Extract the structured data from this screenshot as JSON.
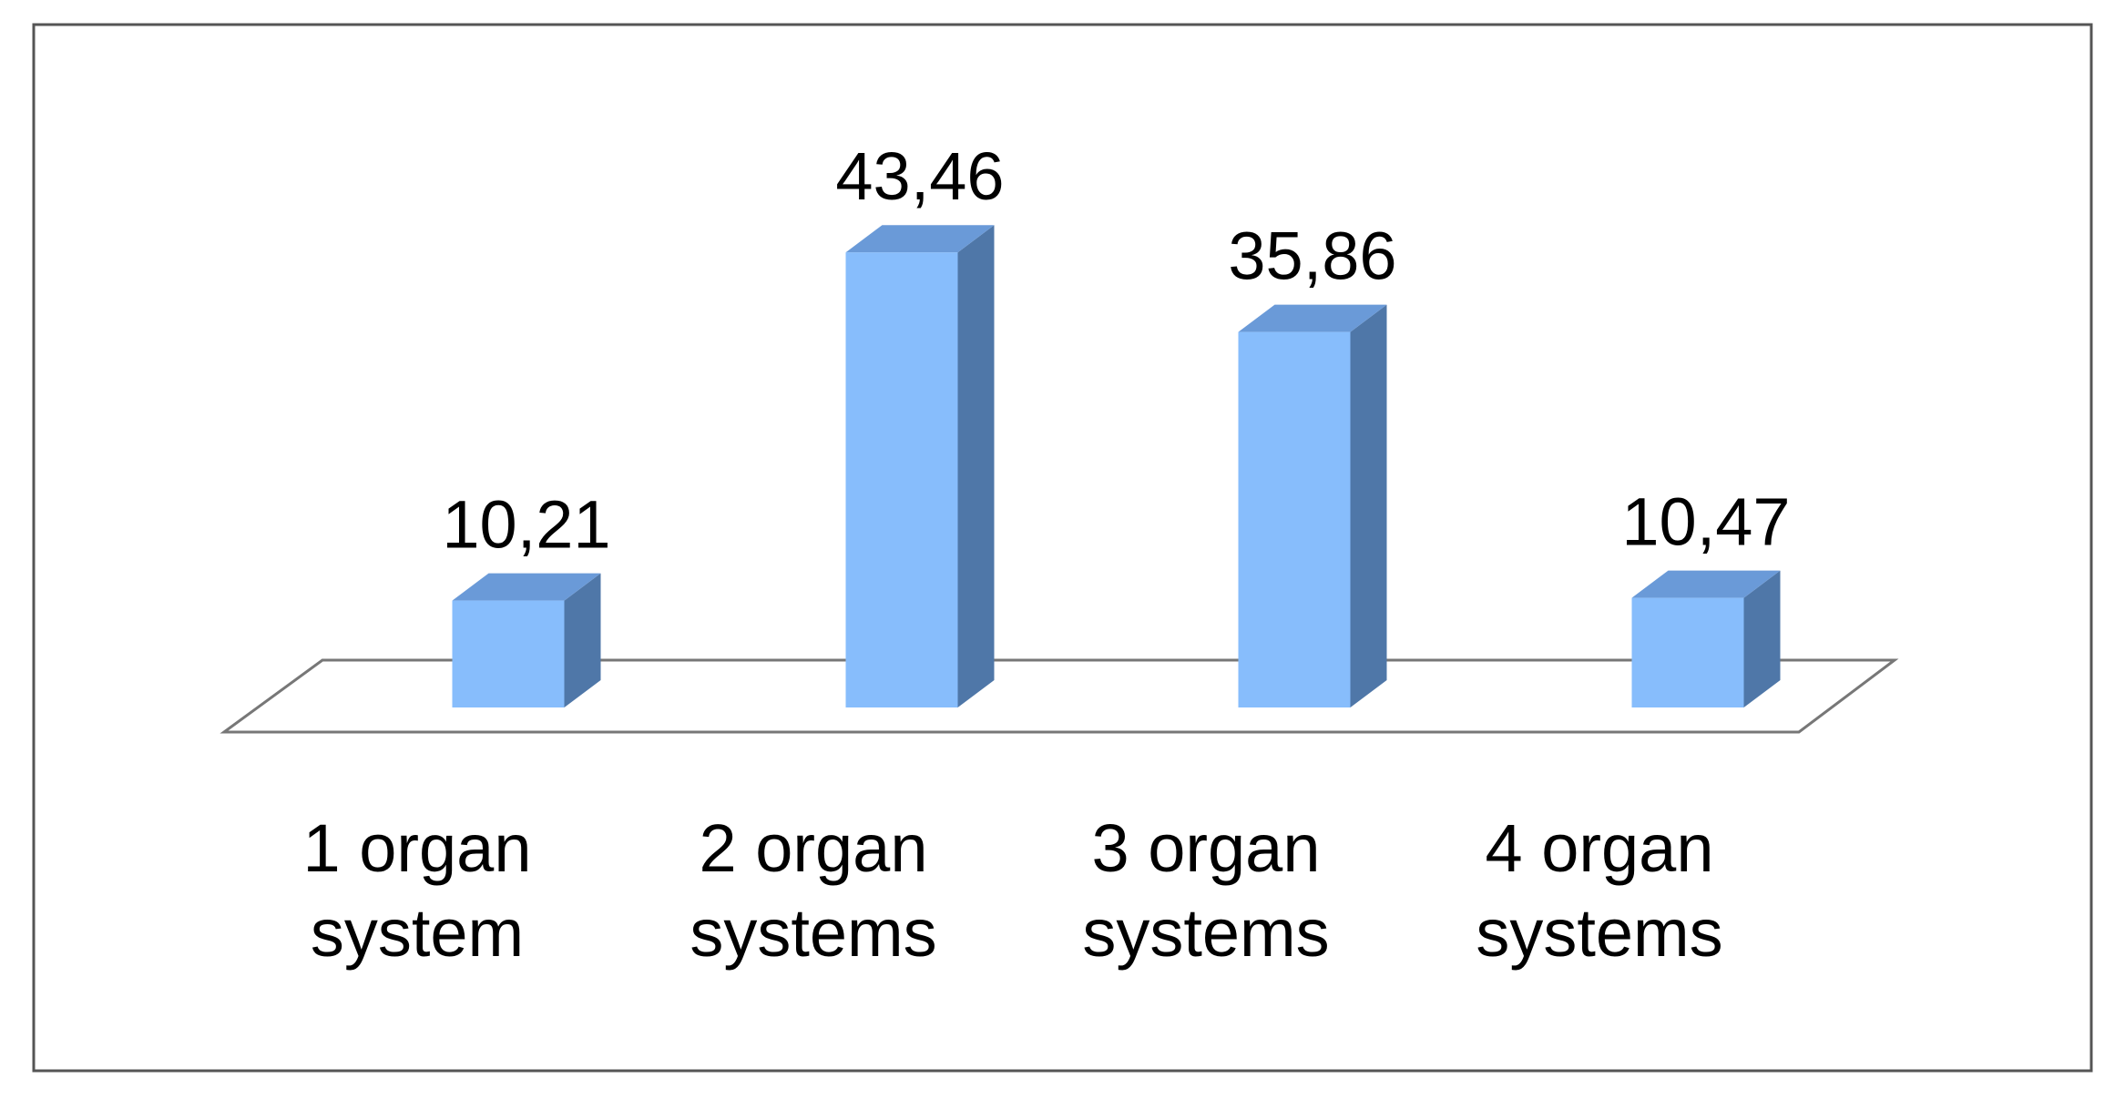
{
  "chart_data": {
    "type": "bar3d",
    "categories": [
      "1 organ system",
      "2 organ systems",
      "3 organ systems",
      "4 organ systems"
    ],
    "values": [
      10.21,
      43.46,
      35.86,
      10.47
    ],
    "value_labels": [
      "10,21",
      "43,46",
      "35,86",
      "10,47"
    ],
    "color": "#87bdfc"
  }
}
